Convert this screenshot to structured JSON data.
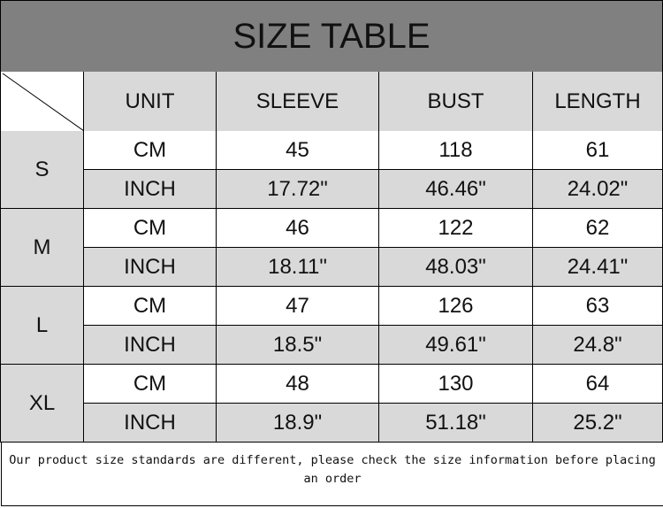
{
  "title": "SIZE TABLE",
  "headers": [
    "UNIT",
    "SLEEVE",
    "BUST",
    "LENGTH"
  ],
  "sizes": [
    {
      "size": "S",
      "cm": {
        "unit": "CM",
        "values": [
          "45",
          "118",
          "61"
        ]
      },
      "inch": {
        "unit": "INCH",
        "values": [
          "17.72\"",
          "46.46\"",
          "24.02\""
        ]
      }
    },
    {
      "size": "M",
      "cm": {
        "unit": "CM",
        "values": [
          "46",
          "122",
          "62"
        ]
      },
      "inch": {
        "unit": "INCH",
        "values": [
          "18.11\"",
          "48.03\"",
          "24.41\""
        ]
      }
    },
    {
      "size": "L",
      "cm": {
        "unit": "CM",
        "values": [
          "47",
          "126",
          "63"
        ]
      },
      "inch": {
        "unit": "INCH",
        "values": [
          "18.5\"",
          "49.61\"",
          "24.8\""
        ]
      }
    },
    {
      "size": "XL",
      "cm": {
        "unit": "CM",
        "values": [
          "48",
          "130",
          "64"
        ]
      },
      "inch": {
        "unit": "INCH",
        "values": [
          "18.9\"",
          "51.18\"",
          "25.2\""
        ]
      }
    }
  ],
  "note": "Our product size standards are different, please check the size information before placing an order",
  "colors": {
    "title_bg": "#808080",
    "header_bg": "#d9d9d9"
  }
}
